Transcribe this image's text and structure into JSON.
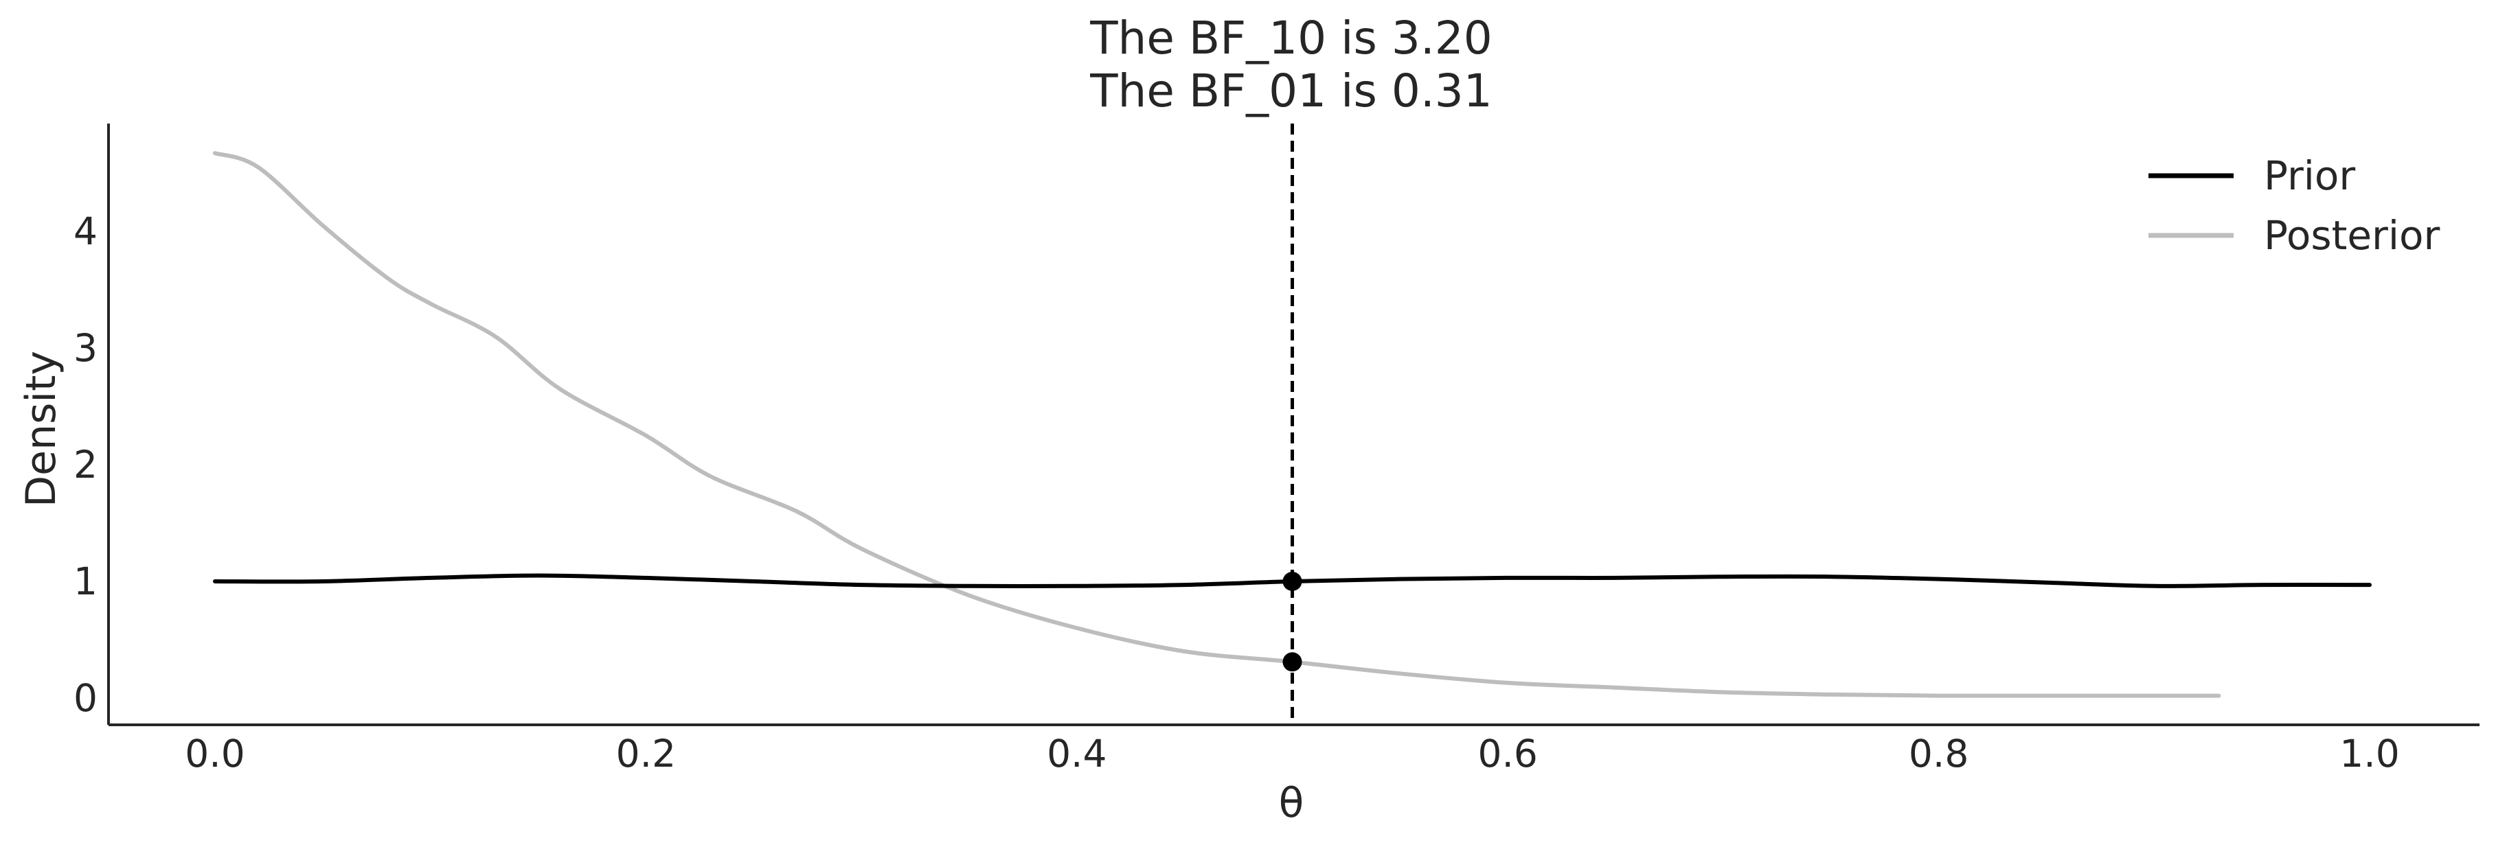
{
  "chart_data": {
    "type": "line",
    "title": "The BF_10 is 3.20",
    "subtitle": "The BF_01 is 0.31",
    "xlabel": "θ",
    "ylabel": "Density",
    "xlim": [
      -0.05,
      1.05
    ],
    "ylim": [
      -0.22,
      4.9
    ],
    "x_ticks": [
      0.0,
      0.2,
      0.4,
      0.6,
      0.8,
      1.0
    ],
    "x_tick_labels": [
      "0.0",
      "0.2",
      "0.4",
      "0.6",
      "0.8",
      "1.0"
    ],
    "y_ticks": [
      0,
      1,
      2,
      3,
      4
    ],
    "y_tick_labels": [
      "0",
      "1",
      "2",
      "3",
      "4"
    ],
    "grid": false,
    "legend_position": "top-right",
    "reference_line": {
      "x": 0.5,
      "style": "dashed",
      "color": "#000000"
    },
    "points": [
      {
        "name": "prior-at-reference",
        "x": 0.5,
        "y": 1.0
      },
      {
        "name": "posterior-at-reference",
        "x": 0.5,
        "y": 0.31
      }
    ],
    "series": [
      {
        "name": "Prior",
        "color": "#000000",
        "x": [
          0.0,
          0.05,
          0.1,
          0.15,
          0.2,
          0.25,
          0.3,
          0.35,
          0.4,
          0.45,
          0.5,
          0.55,
          0.6,
          0.65,
          0.7,
          0.75,
          0.8,
          0.85,
          0.9,
          0.95,
          1.0
        ],
        "y": [
          1.0,
          1.0,
          1.03,
          1.05,
          1.03,
          1.0,
          0.97,
          0.96,
          0.96,
          0.97,
          1.0,
          1.02,
          1.03,
          1.03,
          1.04,
          1.04,
          1.02,
          0.99,
          0.96,
          0.97,
          0.97
        ]
      },
      {
        "name": "Posterior",
        "color": "#bdbdbd",
        "x": [
          0.0,
          0.02,
          0.05,
          0.08,
          0.1,
          0.13,
          0.16,
          0.2,
          0.23,
          0.27,
          0.3,
          0.35,
          0.4,
          0.45,
          0.5,
          0.55,
          0.6,
          0.65,
          0.7,
          0.75,
          0.8,
          0.85,
          0.9,
          0.93
        ],
        "y": [
          4.67,
          4.55,
          4.05,
          3.6,
          3.38,
          3.1,
          2.65,
          2.25,
          1.9,
          1.6,
          1.28,
          0.88,
          0.6,
          0.4,
          0.31,
          0.21,
          0.13,
          0.09,
          0.05,
          0.03,
          0.02,
          0.02,
          0.02,
          0.02
        ]
      }
    ]
  }
}
